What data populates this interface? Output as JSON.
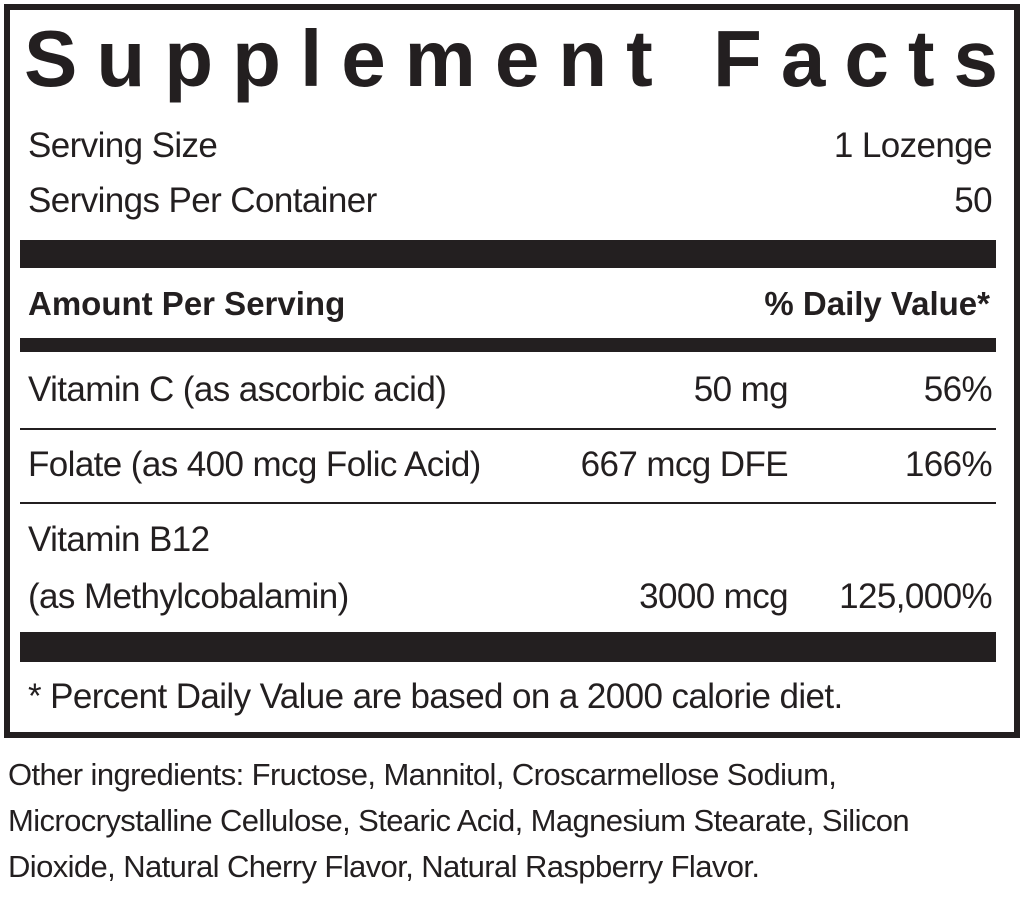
{
  "title": "Supplement Facts",
  "serving": {
    "size_label": "Serving Size",
    "size_value": "1 Lozenge",
    "per_container_label": "Servings Per Container",
    "per_container_value": "50"
  },
  "header": {
    "amount_label": "Amount Per Serving",
    "dv_label": "% Daily Value*"
  },
  "nutrients": [
    {
      "name": "Vitamin C (as ascorbic acid)",
      "amount": "50 mg",
      "dv": "56%"
    },
    {
      "name": "Folate (as 400 mcg Folic Acid)",
      "amount": "667 mcg DFE",
      "dv": "166%"
    },
    {
      "name": "Vitamin B12",
      "name_line2": "(as Methylcobalamin)",
      "amount": "3000 mcg",
      "dv": "125,000%"
    }
  ],
  "footnote": "* Percent Daily Value are based on a 2000 calorie diet.",
  "other_ingredients": "Other ingredients: Fructose, Mannitol, Croscarmellose Sodium, Microcrystalline Cellulose, Stearic Acid, Magnesium Stearate, Silicon Dioxide, Natural Cherry Flavor, Natural Raspberry Flavor."
}
